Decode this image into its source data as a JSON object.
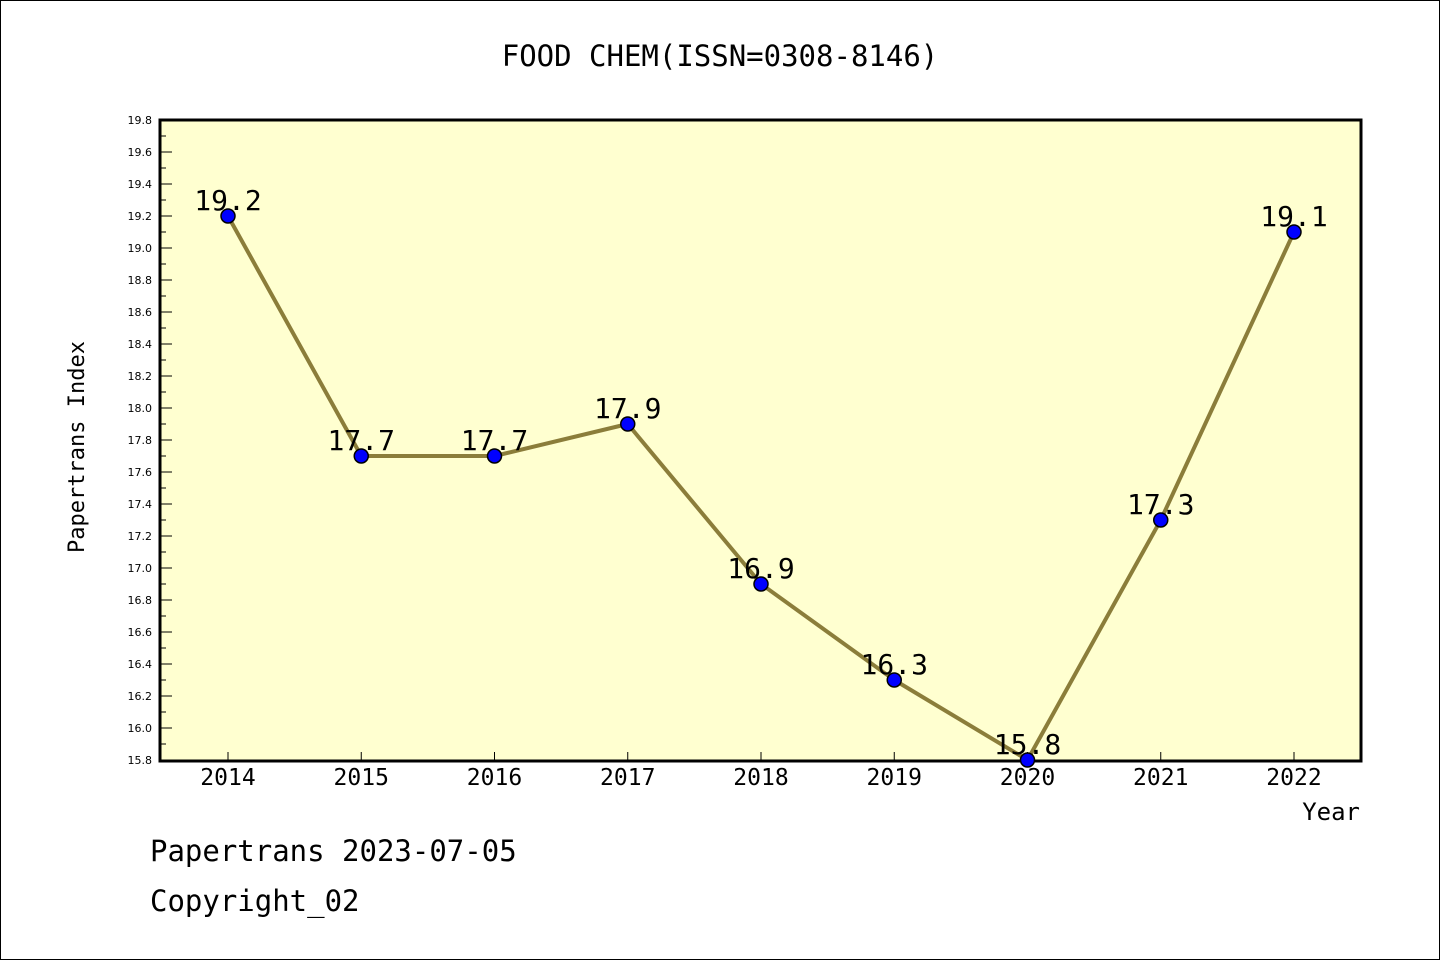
{
  "chart_data": {
    "type": "line",
    "title": "FOOD CHEM(ISSN=0308-8146)",
    "xlabel": "Year",
    "ylabel": "Papertrans Index",
    "categories": [
      "2014",
      "2015",
      "2016",
      "2017",
      "2018",
      "2019",
      "2020",
      "2021",
      "2022"
    ],
    "series": [
      {
        "values": [
          19.2,
          17.7,
          17.7,
          17.9,
          16.9,
          16.3,
          15.8,
          17.3,
          19.1
        ],
        "labels": [
          "19.2",
          "17.7",
          "17.7",
          "17.9",
          "16.9",
          "16.3",
          "15.8",
          "17.3",
          "19.1"
        ]
      }
    ],
    "ylim": [
      15.8,
      19.8
    ],
    "yticks": [
      "15.8",
      "16.0",
      "16.2",
      "16.4",
      "16.6",
      "16.8",
      "17.0",
      "17.2",
      "17.4",
      "17.6",
      "17.8",
      "18.0",
      "18.2",
      "18.4",
      "18.6",
      "18.8",
      "19.0",
      "19.2",
      "19.4",
      "19.6",
      "19.8"
    ],
    "grid": false,
    "colors": {
      "plot_background": "#ffffd0",
      "line": "#8b7d3a",
      "marker": "#0000ff"
    }
  },
  "footer": {
    "line1": "Papertrans 2023-07-05",
    "line2": "Copyright_02"
  }
}
